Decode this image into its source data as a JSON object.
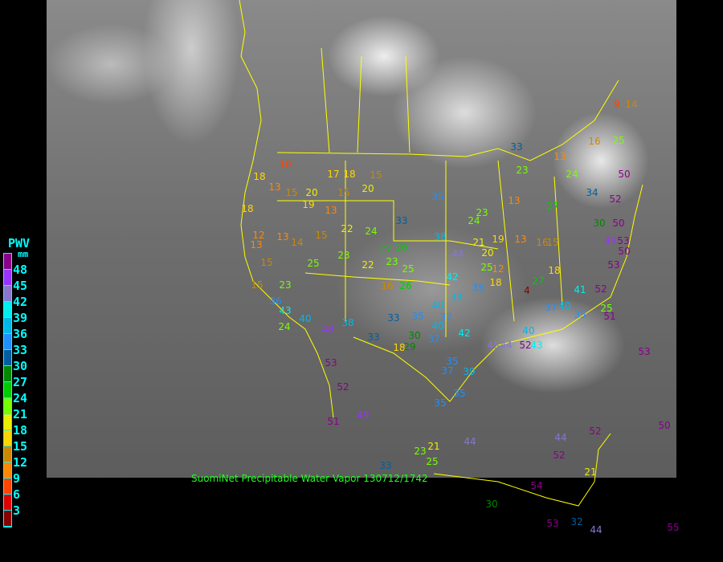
{
  "legend": {
    "title": "PWV",
    "unit": "mm",
    "ticks": [
      "48",
      "45",
      "42",
      "39",
      "36",
      "33",
      "30",
      "27",
      "24",
      "21",
      "18",
      "15",
      "12",
      "9",
      "6",
      "3"
    ],
    "colors": [
      "#8b008b",
      "#9933ff",
      "#8877cc",
      "#00eeee",
      "#00b8e8",
      "#1e90ff",
      "#005f9f",
      "#008800",
      "#00cc00",
      "#77ff00",
      "#eeee00",
      "#ffd700",
      "#cc8800",
      "#ff8800",
      "#ff4400",
      "#dd0000",
      "#880000"
    ]
  },
  "caption": "SuomiNet Precipitable Water Vapor 130712/1742",
  "stations": [
    "18",
    "10",
    "17",
    "18",
    "15",
    "13",
    "15",
    "20",
    "15",
    "20",
    "19",
    "13",
    "18",
    "12",
    "13",
    "14",
    "15",
    "22",
    "24",
    "13",
    "15",
    "15",
    "23",
    "25",
    "23",
    "22",
    "23",
    "27",
    "26",
    "25",
    "16",
    "26",
    "35",
    "33",
    "38",
    "23",
    "24",
    "21",
    "20",
    "19",
    "25",
    "12",
    "18",
    "44",
    "42",
    "39",
    "35",
    "35",
    "40",
    "37",
    "33",
    "42",
    "40",
    "37",
    "30",
    "18",
    "29",
    "35",
    "37",
    "35",
    "35",
    "23",
    "21",
    "25",
    "44",
    "33",
    "30",
    "32",
    "44",
    "54",
    "53",
    "55",
    "33",
    "24",
    "34",
    "30",
    "49",
    "53",
    "50",
    "53",
    "50",
    "52",
    "50",
    "52",
    "41",
    "40",
    "37",
    "40",
    "43",
    "45",
    "44",
    "52",
    "39",
    "48",
    "53",
    "52",
    "49",
    "51",
    "38",
    "33",
    "43",
    "36",
    "24",
    "40",
    "25",
    "51",
    "53",
    "50",
    "52",
    "44",
    "52",
    "21",
    "14",
    "9",
    "16",
    "25",
    "13",
    "13",
    "23",
    "27",
    "18",
    "27",
    "4",
    "35",
    "13",
    "16",
    "15"
  ]
}
